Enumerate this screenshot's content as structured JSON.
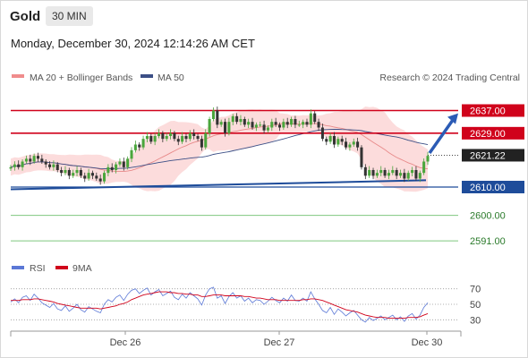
{
  "header": {
    "title": "Gold",
    "timeframe": "30 MIN"
  },
  "timestamp": "Monday, December 30, 2024 12:14:26 AM CET",
  "legend": {
    "bb_label": "MA 20 + Bollinger Bands",
    "ma50_label": "MA 50",
    "source": "Research © 2024 Trading Central"
  },
  "rsi_legend": {
    "rsi": "RSI",
    "ma": "9MA"
  },
  "colors": {
    "bullish": "#4aa63c",
    "bearish": "#333333",
    "bands": "#fbd6d6",
    "ma20": "#e88a8a",
    "ma50": "#3c4f86",
    "resistance": "#d0021b",
    "support": "#1e4c9a",
    "target": "#2a7a2a",
    "current": "#222222"
  },
  "chart_data": [
    {
      "type": "candlestick",
      "x_ticks": [
        "Dec 26",
        "Dec 27",
        "Dec 30"
      ],
      "ylim": [
        2586,
        2646
      ],
      "levels": [
        {
          "value": 2637.0,
          "label": "2637.00",
          "kind": "resistance"
        },
        {
          "value": 2629.0,
          "label": "2629.00",
          "kind": "resistance"
        },
        {
          "value": 2621.22,
          "label": "2621.22",
          "kind": "current"
        },
        {
          "value": 2610.0,
          "label": "2610.00",
          "kind": "support"
        },
        {
          "value": 2600.0,
          "label": "2600.00",
          "kind": "target"
        },
        {
          "value": 2591.0,
          "label": "2591.00",
          "kind": "target"
        }
      ],
      "closes": [
        2617,
        2618,
        2617,
        2619,
        2620,
        2619,
        2621,
        2620,
        2619,
        2618,
        2617,
        2618,
        2616,
        2615,
        2616,
        2614,
        2615,
        2616,
        2614,
        2613,
        2615,
        2614,
        2613,
        2612,
        2615,
        2617,
        2616,
        2618,
        2619,
        2617,
        2620,
        2623,
        2625,
        2624,
        2627,
        2628,
        2626,
        2628,
        2629,
        2627,
        2628,
        2629,
        2627,
        2626,
        2628,
        2627,
        2629,
        2628,
        2627,
        2624,
        2629,
        2634,
        2637,
        2632,
        2633,
        2629,
        2633,
        2635,
        2633,
        2634,
        2632,
        2633,
        2631,
        2632,
        2632,
        2630,
        2631,
        2633,
        2632,
        2631,
        2633,
        2632,
        2634,
        2632,
        2632,
        2633,
        2632,
        2636,
        2633,
        2631,
        2627,
        2626,
        2628,
        2625,
        2627,
        2626,
        2624,
        2625,
        2626,
        2624,
        2617,
        2614,
        2616,
        2614,
        2615,
        2616,
        2614,
        2615,
        2616,
        2614,
        2615,
        2613,
        2615,
        2616,
        2613,
        2615,
        2619,
        2621
      ],
      "projection_arrow": {
        "from": 2622,
        "to": 2636
      }
    },
    {
      "type": "line",
      "title": "RSI",
      "ylim": [
        20,
        80
      ],
      "y_ticks": [
        "70",
        "50",
        "30"
      ],
      "series": [
        {
          "name": "RSI",
          "values": [
            53,
            57,
            52,
            59,
            61,
            55,
            63,
            58,
            52,
            49,
            46,
            51,
            44,
            42,
            48,
            41,
            45,
            50,
            43,
            40,
            47,
            44,
            41,
            39,
            50,
            56,
            53,
            59,
            62,
            55,
            63,
            68,
            70,
            64,
            68,
            71,
            62,
            66,
            69,
            61,
            64,
            67,
            59,
            56,
            63,
            58,
            65,
            61,
            57,
            49,
            62,
            70,
            72,
            58,
            61,
            51,
            60,
            65,
            58,
            61,
            54,
            58,
            52,
            56,
            55,
            50,
            54,
            59,
            55,
            52,
            58,
            54,
            62,
            55,
            54,
            58,
            54,
            66,
            57,
            50,
            42,
            39,
            46,
            37,
            44,
            40,
            35,
            39,
            42,
            36,
            30,
            27,
            33,
            29,
            32,
            35,
            30,
            33,
            36,
            30,
            34,
            28,
            35,
            38,
            31,
            36,
            46,
            52
          ]
        },
        {
          "name": "9MA",
          "values": [
            55,
            55,
            55,
            56,
            56,
            56,
            57,
            57,
            56,
            55,
            54,
            53,
            51,
            50,
            49,
            48,
            47,
            46,
            45,
            45,
            45,
            45,
            45,
            44,
            45,
            46,
            47,
            48,
            50,
            51,
            53,
            56,
            58,
            60,
            62,
            63,
            64,
            65,
            66,
            66,
            66,
            65,
            65,
            64,
            64,
            63,
            63,
            62,
            62,
            60,
            60,
            61,
            62,
            62,
            62,
            61,
            61,
            61,
            61,
            61,
            60,
            60,
            59,
            58,
            58,
            57,
            56,
            56,
            56,
            55,
            55,
            55,
            55,
            55,
            55,
            56,
            56,
            57,
            57,
            56,
            55,
            53,
            51,
            49,
            47,
            45,
            43,
            42,
            41,
            40,
            38,
            36,
            35,
            34,
            33,
            33,
            33,
            32,
            32,
            32,
            32,
            32,
            33,
            33,
            33,
            34,
            36,
            38
          ]
        }
      ]
    }
  ]
}
